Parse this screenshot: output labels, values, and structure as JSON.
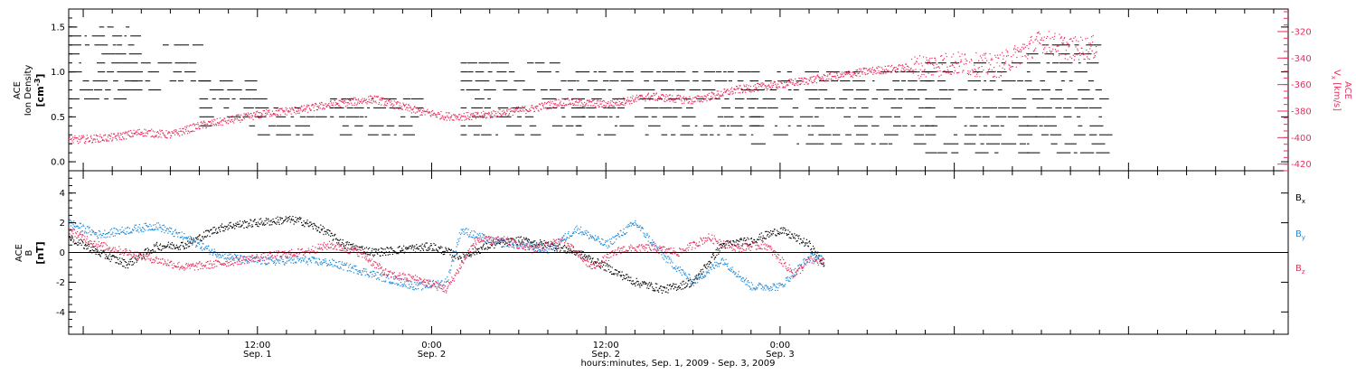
{
  "chart_data": [
    {
      "type": "scatter",
      "panel": "top",
      "ylabel_left": [
        "ACE",
        "Ion Density",
        "[cm",
        "-3",
        "]"
      ],
      "ylabel_right": [
        "ACE",
        "V",
        "x",
        " [km/s]"
      ],
      "y_left_ticks": [
        "1.5",
        "1.0",
        "0.5",
        "0.0"
      ],
      "y_left_range": [
        -0.1,
        1.7
      ],
      "y_right_ticks": [
        "-320",
        "-340",
        "-360",
        "-380",
        "-400",
        "-420"
      ],
      "y_right_range": [
        -425,
        -303
      ],
      "colors": {
        "density": "#000000",
        "vx": "#e8315f"
      },
      "series": [
        {
          "name": "Ion Density",
          "axis": "left",
          "color": "#000000",
          "levels": [
            0.1,
            0.2,
            0.3,
            0.4,
            0.5,
            0.6,
            0.7,
            0.8,
            0.9,
            1.0,
            1.1,
            1.2,
            1.3,
            1.4,
            1.5
          ],
          "segments": [
            {
              "t0": -13,
              "t1": -8.7,
              "levels": [
                0.7,
                0.8,
                0.9,
                1.0,
                1.1,
                1.2,
                1.3,
                1.4,
                1.5
              ]
            },
            {
              "t0": -8.7,
              "t1": -4,
              "levels": [
                0.8,
                0.9,
                1.0,
                1.1,
                1.3
              ]
            },
            {
              "t0": -4,
              "t1": 0,
              "levels": [
                0.4,
                0.5,
                0.6,
                0.7,
                0.8,
                0.9
              ]
            },
            {
              "t0": 0,
              "t1": 5,
              "levels": [
                0.3,
                0.4,
                0.5,
                0.6
              ]
            },
            {
              "t0": 5,
              "t1": 11,
              "levels": [
                0.3,
                0.4,
                0.5,
                0.6,
                0.7
              ]
            },
            {
              "t0": 14,
              "t1": 22,
              "levels": [
                0.3,
                0.4,
                0.5,
                0.6,
                0.7,
                0.8,
                0.9,
                1.0,
                1.1
              ]
            },
            {
              "t0": 22,
              "t1": 34,
              "levels": [
                0.3,
                0.4,
                0.5,
                0.6,
                0.7,
                0.8,
                0.9,
                1.0
              ]
            },
            {
              "t0": 34,
              "t1": 46,
              "levels": [
                0.2,
                0.3,
                0.4,
                0.5,
                0.6,
                0.7,
                0.8,
                0.9,
                1.0
              ]
            },
            {
              "t0": 46,
              "t1": 53,
              "levels": [
                0.1,
                0.2,
                0.3,
                0.4,
                0.5,
                0.6,
                0.7,
                0.8,
                0.9,
                1.0,
                1.1
              ]
            },
            {
              "t0": 53,
              "t1": 58,
              "levels": [
                0.1,
                0.2,
                0.3,
                0.4,
                0.5,
                0.6,
                0.7,
                0.8,
                0.9,
                1.0,
                1.1,
                1.2,
                1.3
              ]
            }
          ]
        },
        {
          "name": "Vx",
          "axis": "right",
          "color": "#e8315f",
          "t": [
            -13,
            -10,
            -8,
            -6,
            -4,
            -2,
            1,
            3,
            5,
            8,
            11,
            13,
            15,
            17,
            19,
            21,
            24,
            27,
            30,
            33,
            36,
            39,
            42,
            45,
            48,
            51,
            54,
            56,
            57.8
          ],
          "values": [
            -402,
            -400,
            -396,
            -398,
            -391,
            -387,
            -381,
            -379,
            -375,
            -371,
            -380,
            -384,
            -384,
            -381,
            -378,
            -373,
            -375,
            -369,
            -372,
            -364,
            -360,
            -355,
            -350,
            -347,
            -344,
            -346,
            -327,
            -333,
            -332
          ]
        }
      ]
    },
    {
      "type": "scatter",
      "panel": "bottom",
      "ylabel": [
        "ACE",
        "B",
        "[nT]"
      ],
      "y_ticks": [
        "4",
        "2",
        "0",
        "-2",
        "-4"
      ],
      "y_range": [
        -5.5,
        5.5
      ],
      "x_ticks": [
        {
          "t": 0,
          "time": "12:00",
          "date": "Sep. 1"
        },
        {
          "t": 12,
          "time": "0:00",
          "date": "Sep. 2"
        },
        {
          "t": 24,
          "time": "12:00",
          "date": "Sep. 2"
        },
        {
          "t": 36,
          "time": "0:00",
          "date": "Sep. 3"
        }
      ],
      "x_range": [
        -13,
        71
      ],
      "xlabel": "hours:minutes, Sep.  1, 2009 - Sep.  3, 2009",
      "legend_placement": "right",
      "series": [
        {
          "name": "Bx",
          "color": "#000000",
          "t": [
            -13,
            -11,
            -9,
            -7,
            -5,
            -3,
            -2,
            0,
            2,
            3,
            4.5,
            6,
            8,
            10,
            12,
            14,
            16,
            18,
            20,
            22,
            24,
            26,
            28,
            30,
            32,
            34,
            36,
            38,
            39
          ],
          "values": [
            1.0,
            0.0,
            -0.8,
            0.4,
            0.5,
            1.5,
            1.8,
            2.0,
            2.2,
            2.1,
            1.5,
            0.5,
            0.0,
            0.2,
            0.4,
            -0.3,
            0.5,
            0.8,
            0.5,
            0.0,
            -1.0,
            -2.0,
            -2.5,
            -2.0,
            0.5,
            0.8,
            1.5,
            0.5,
            -0.8
          ]
        },
        {
          "name": "By",
          "color": "#1e88d8",
          "t": [
            -13,
            -11,
            -9,
            -7,
            -5,
            -3,
            -1,
            1,
            3,
            5,
            7,
            9,
            11,
            13,
            14,
            16,
            18,
            20,
            22,
            24,
            26,
            28,
            30,
            32,
            34,
            36,
            38,
            39
          ],
          "values": [
            2.0,
            1.2,
            1.5,
            1.8,
            1.0,
            0.0,
            -0.5,
            -0.6,
            -0.5,
            -0.7,
            -1.2,
            -1.8,
            -2.3,
            -2.0,
            1.5,
            0.8,
            0.5,
            0.2,
            1.6,
            0.5,
            2.0,
            -0.3,
            -2.0,
            -0.5,
            -2.3,
            -2.3,
            -0.3,
            -0.5
          ]
        },
        {
          "name": "Bz",
          "color": "#e8315f",
          "t": [
            -13,
            -11,
            -9,
            -7,
            -5,
            -3,
            -1,
            1,
            3,
            5,
            7,
            9,
            11,
            13,
            15,
            17,
            19,
            21,
            23,
            25,
            27,
            29,
            31,
            33,
            35,
            37,
            38,
            39
          ],
          "values": [
            1.5,
            0.5,
            0.0,
            -0.5,
            -1.0,
            -0.8,
            -0.5,
            -0.2,
            0.0,
            0.5,
            0.0,
            -1.5,
            -1.8,
            -2.5,
            0.8,
            0.8,
            0.2,
            0.8,
            -1.0,
            0.2,
            0.3,
            0.0,
            1.0,
            0.3,
            0.5,
            -1.5,
            -0.5,
            -0.7
          ]
        }
      ]
    }
  ],
  "legend": [
    {
      "base": "B",
      "sub": "x",
      "color": "#000000"
    },
    {
      "base": "B",
      "sub": "y",
      "color": "#1e88d8"
    },
    {
      "base": "B",
      "sub": "z",
      "color": "#e8315f"
    }
  ]
}
